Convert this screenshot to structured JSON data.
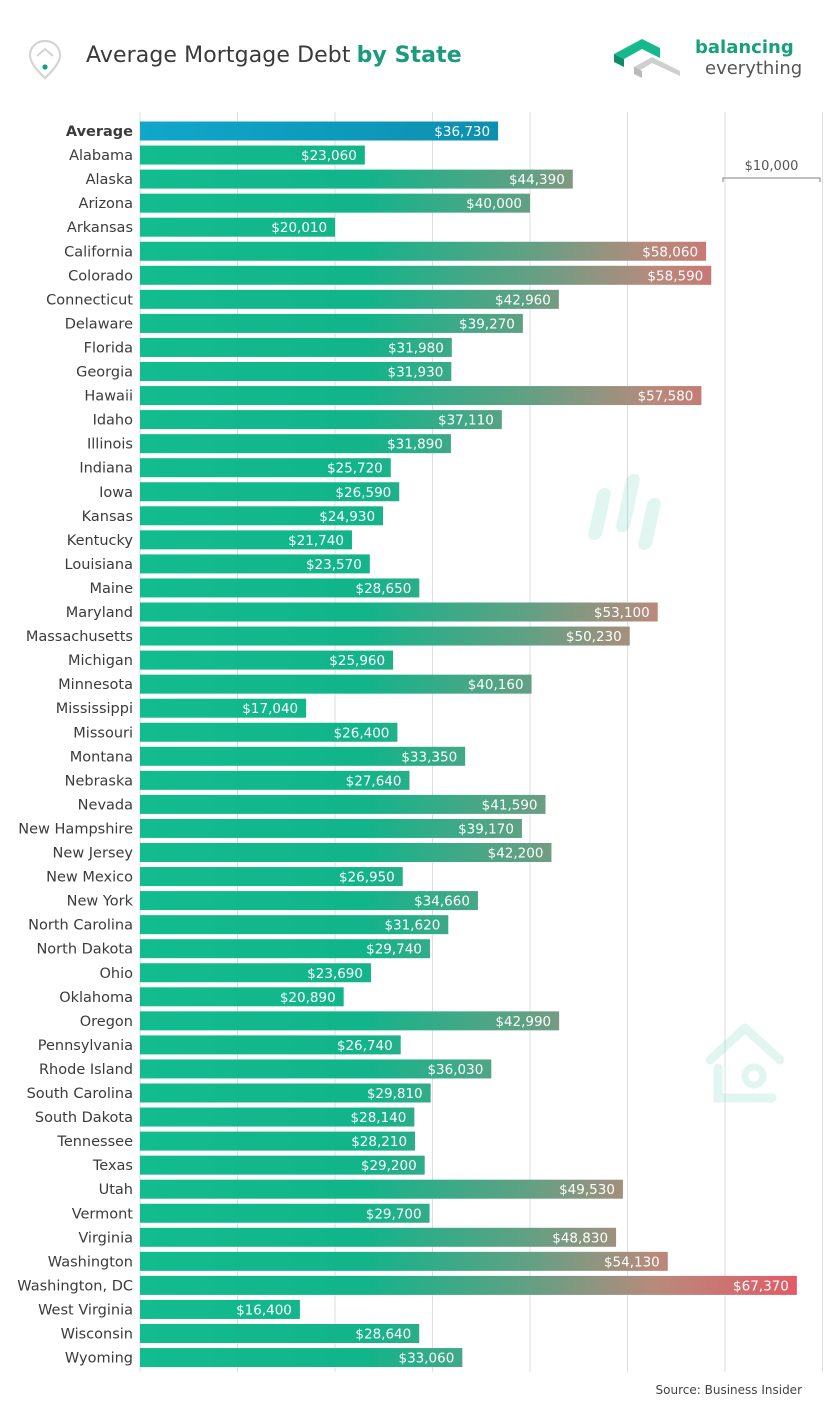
{
  "header": {
    "title_normal": "Average Mortgage Debt",
    "title_accent": "by State"
  },
  "logo": {
    "line1": "balancing",
    "line2": "everything",
    "icon": "balancing-everything-logo-icon"
  },
  "icons": {
    "location": "location-pin-icon"
  },
  "colors": {
    "average_bar": "#11a3c4",
    "bar_start": "#12bc8e",
    "bar_end": "#e0606a",
    "grid": "#dedede",
    "accent_text": "#1a9b7a"
  },
  "source": "Source: Business Insider",
  "chart_data": {
    "type": "bar",
    "orientation": "horizontal",
    "value_prefix": "$",
    "scale_label": "$10,000",
    "xlim": [
      0,
      70000
    ],
    "grid": true,
    "categories": [
      "Average",
      "Alabama",
      "Alaska",
      "Arizona",
      "Arkansas",
      "California",
      "Colorado",
      "Connecticut",
      "Delaware",
      "Florida",
      "Georgia",
      "Hawaii",
      "Idaho",
      "Illinois",
      "Indiana",
      "Iowa",
      "Kansas",
      "Kentucky",
      "Louisiana",
      "Maine",
      "Maryland",
      "Massachusetts",
      "Michigan",
      "Minnesota",
      "Mississippi",
      "Missouri",
      "Montana",
      "Nebraska",
      "Nevada",
      "New Hampshire",
      "New Jersey",
      "New Mexico",
      "New York",
      "North Carolina",
      "North Dakota",
      "Ohio",
      "Oklahoma",
      "Oregon",
      "Pennsylvania",
      "Rhode Island",
      "South Carolina",
      "South Dakota",
      "Tennessee",
      "Texas",
      "Utah",
      "Vermont",
      "Virginia",
      "Washington",
      "Washington, DC",
      "West Virginia",
      "Wisconsin",
      "Wyoming"
    ],
    "values": [
      36730,
      23060,
      44390,
      40000,
      20010,
      58060,
      58590,
      42960,
      39270,
      31980,
      31930,
      57580,
      37110,
      31890,
      25720,
      26590,
      24930,
      21740,
      23570,
      28650,
      53100,
      50230,
      25960,
      40160,
      17040,
      26400,
      33350,
      27640,
      41590,
      39170,
      42200,
      26950,
      34660,
      31620,
      29740,
      23690,
      20890,
      42990,
      26740,
      36030,
      29810,
      28140,
      28210,
      29200,
      49530,
      29700,
      48830,
      54130,
      67370,
      16400,
      28640,
      33060
    ],
    "value_labels": [
      "$36,730",
      "$23,060",
      "$44,390",
      "$40,000",
      "$20,010",
      "$58,060",
      "$58,590",
      "$42,960",
      "$39,270",
      "$31,980",
      "$31,930",
      "$57,580",
      "$37,110",
      "$31,890",
      "$25,720",
      "$26,590",
      "$24,930",
      "$21,740",
      "$23,570",
      "$28,650",
      "$53,100",
      "$50,230",
      "$25,960",
      "$40,160",
      "$17,040",
      "$26,400",
      "$33,350",
      "$27,640",
      "$41,590",
      "$39,170",
      "$42,200",
      "$26,950",
      "$34,660",
      "$31,620",
      "$29,740",
      "$23,690",
      "$20,890",
      "$42,990",
      "$26,740",
      "$36,030",
      "$29,810",
      "$28,140",
      "$28,210",
      "$29,200",
      "$49,530",
      "$29,700",
      "$48,830",
      "$54,130",
      "$67,370",
      "$16,400",
      "$28,640",
      "$33,060"
    ]
  }
}
